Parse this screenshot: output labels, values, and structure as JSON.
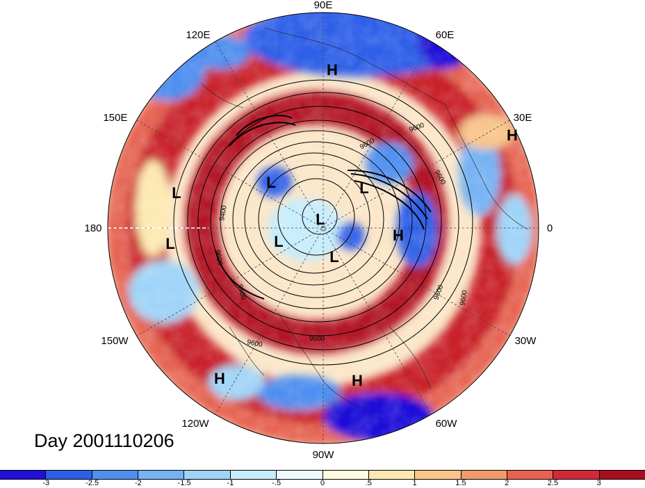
{
  "title": "Day 2001110206",
  "projection": "north-polar-stereographic",
  "longitude_labels": [
    "90E",
    "60E",
    "30E",
    "0",
    "30W",
    "60W",
    "90W",
    "120W",
    "150W",
    "180",
    "150E",
    "120E"
  ],
  "pressure_systems": [
    {
      "type": "H",
      "lon_label": "90E-region"
    },
    {
      "type": "H",
      "lon_label": "30E-region"
    },
    {
      "type": "L",
      "lon_label": "180-region-north"
    },
    {
      "type": "L",
      "lon_label": "180-region-south"
    },
    {
      "type": "L",
      "lon_label": "east-siberia"
    },
    {
      "type": "L",
      "lon_label": "scandinavia"
    },
    {
      "type": "L",
      "lon_label": "pole"
    },
    {
      "type": "L",
      "lon_label": "canadian-arctic-west"
    },
    {
      "type": "L",
      "lon_label": "canadian-arctic-east"
    },
    {
      "type": "H",
      "lon_label": "north-atlantic"
    },
    {
      "type": "H",
      "lon_label": "east-pacific"
    },
    {
      "type": "H",
      "lon_label": "caribbean"
    }
  ],
  "contour_labels": [
    "9600",
    "9600",
    "9400",
    "9600",
    "9400",
    "9600",
    "9500",
    "9600",
    "9600",
    "9600"
  ],
  "colorbar": {
    "tick_labels": [
      "-3",
      "-2.5",
      "-2",
      "-1.5",
      "-1",
      "-.5",
      "0",
      ".5",
      "1",
      "1.5",
      "2",
      "2.5",
      "3"
    ],
    "colors": [
      "#1f0fd8",
      "#2e5ee8",
      "#4f8ff0",
      "#76b2f4",
      "#9fd4f8",
      "#c6ecfb",
      "#eefaff",
      "#fffbe0",
      "#fde9b0",
      "#f9c58a",
      "#f29a6c",
      "#e9614f",
      "#d3283a",
      "#a50f1f"
    ]
  }
}
